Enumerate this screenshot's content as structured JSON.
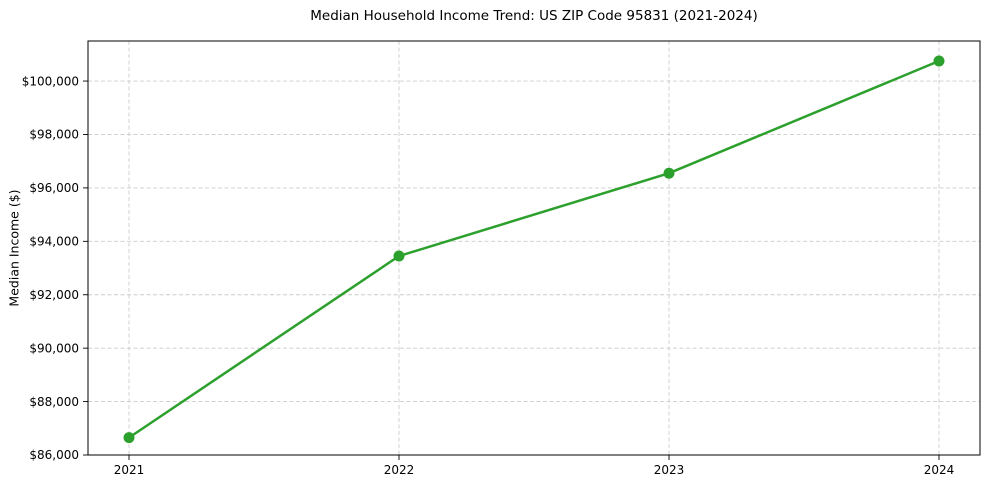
{
  "chart_data": {
    "type": "line",
    "title": "Median Household Income Trend: US ZIP Code 95831 (2021-2024)",
    "xlabel": "",
    "ylabel": "Median Income ($)",
    "categories": [
      "2021",
      "2022",
      "2023",
      "2024"
    ],
    "values": [
      86650,
      93450,
      96550,
      100750
    ],
    "ylim": [
      86000,
      101500
    ],
    "yticks": [
      86000,
      88000,
      90000,
      92000,
      94000,
      96000,
      98000,
      100000
    ],
    "ytick_labels": [
      "$86,000",
      "$88,000",
      "$90,000",
      "$92,000",
      "$94,000",
      "$96,000",
      "$98,000",
      "$100,000"
    ],
    "grid": true,
    "grid_style": "dashed",
    "legend_position": "none",
    "line_color": "#2ca02c",
    "marker": "circle",
    "grid_color": "#cccccc",
    "axis_color": "#000000",
    "background_color": "#ffffff"
  }
}
